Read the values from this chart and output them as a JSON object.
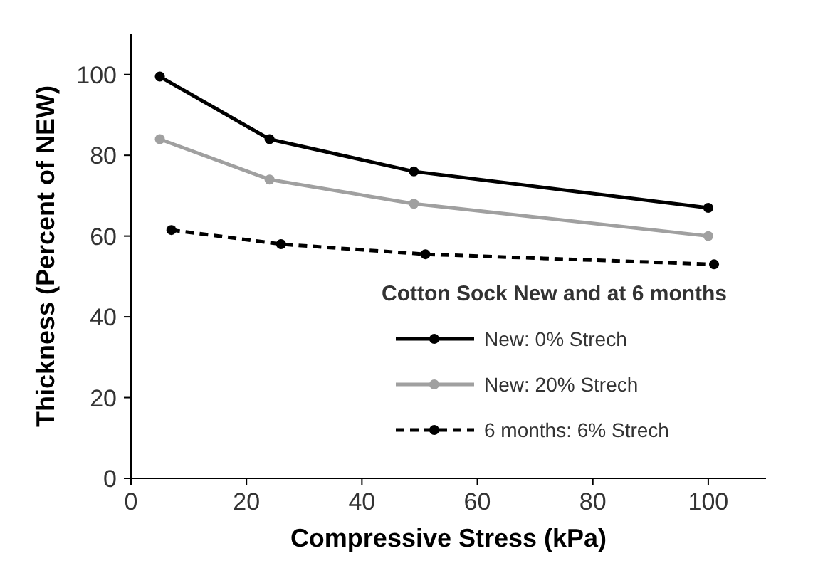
{
  "chart_data": {
    "type": "line",
    "xlabel": "Compressive Stress (kPa)",
    "ylabel": "Thickness (Percent of NEW)",
    "legend_title": "Cotton Sock New and at 6 months",
    "legend": "bottom right",
    "marker": "circle",
    "grid": false,
    "xlim": [
      0,
      110
    ],
    "xticks": [
      0,
      20,
      40,
      60,
      80,
      100
    ],
    "ylim": [
      0,
      110
    ],
    "yticks": [
      0,
      20,
      40,
      60,
      80,
      100
    ],
    "series": [
      {
        "name": "New: 0% Strech",
        "color": "#000000",
        "x": [
          5,
          24,
          49,
          100
        ],
        "values": [
          99.5,
          84,
          76,
          67
        ],
        "line_style": "solid"
      },
      {
        "name": "New: 20% Strech",
        "color": "#a0a0a0",
        "x": [
          5,
          24,
          49,
          100
        ],
        "values": [
          84,
          74,
          68,
          60
        ],
        "line_style": "solid"
      },
      {
        "name": "6 months: 6% Strech",
        "color": "#000000",
        "x": [
          7,
          26,
          51,
          101
        ],
        "values": [
          61.5,
          58,
          55.5,
          53
        ],
        "line_style": "dashed"
      }
    ]
  }
}
